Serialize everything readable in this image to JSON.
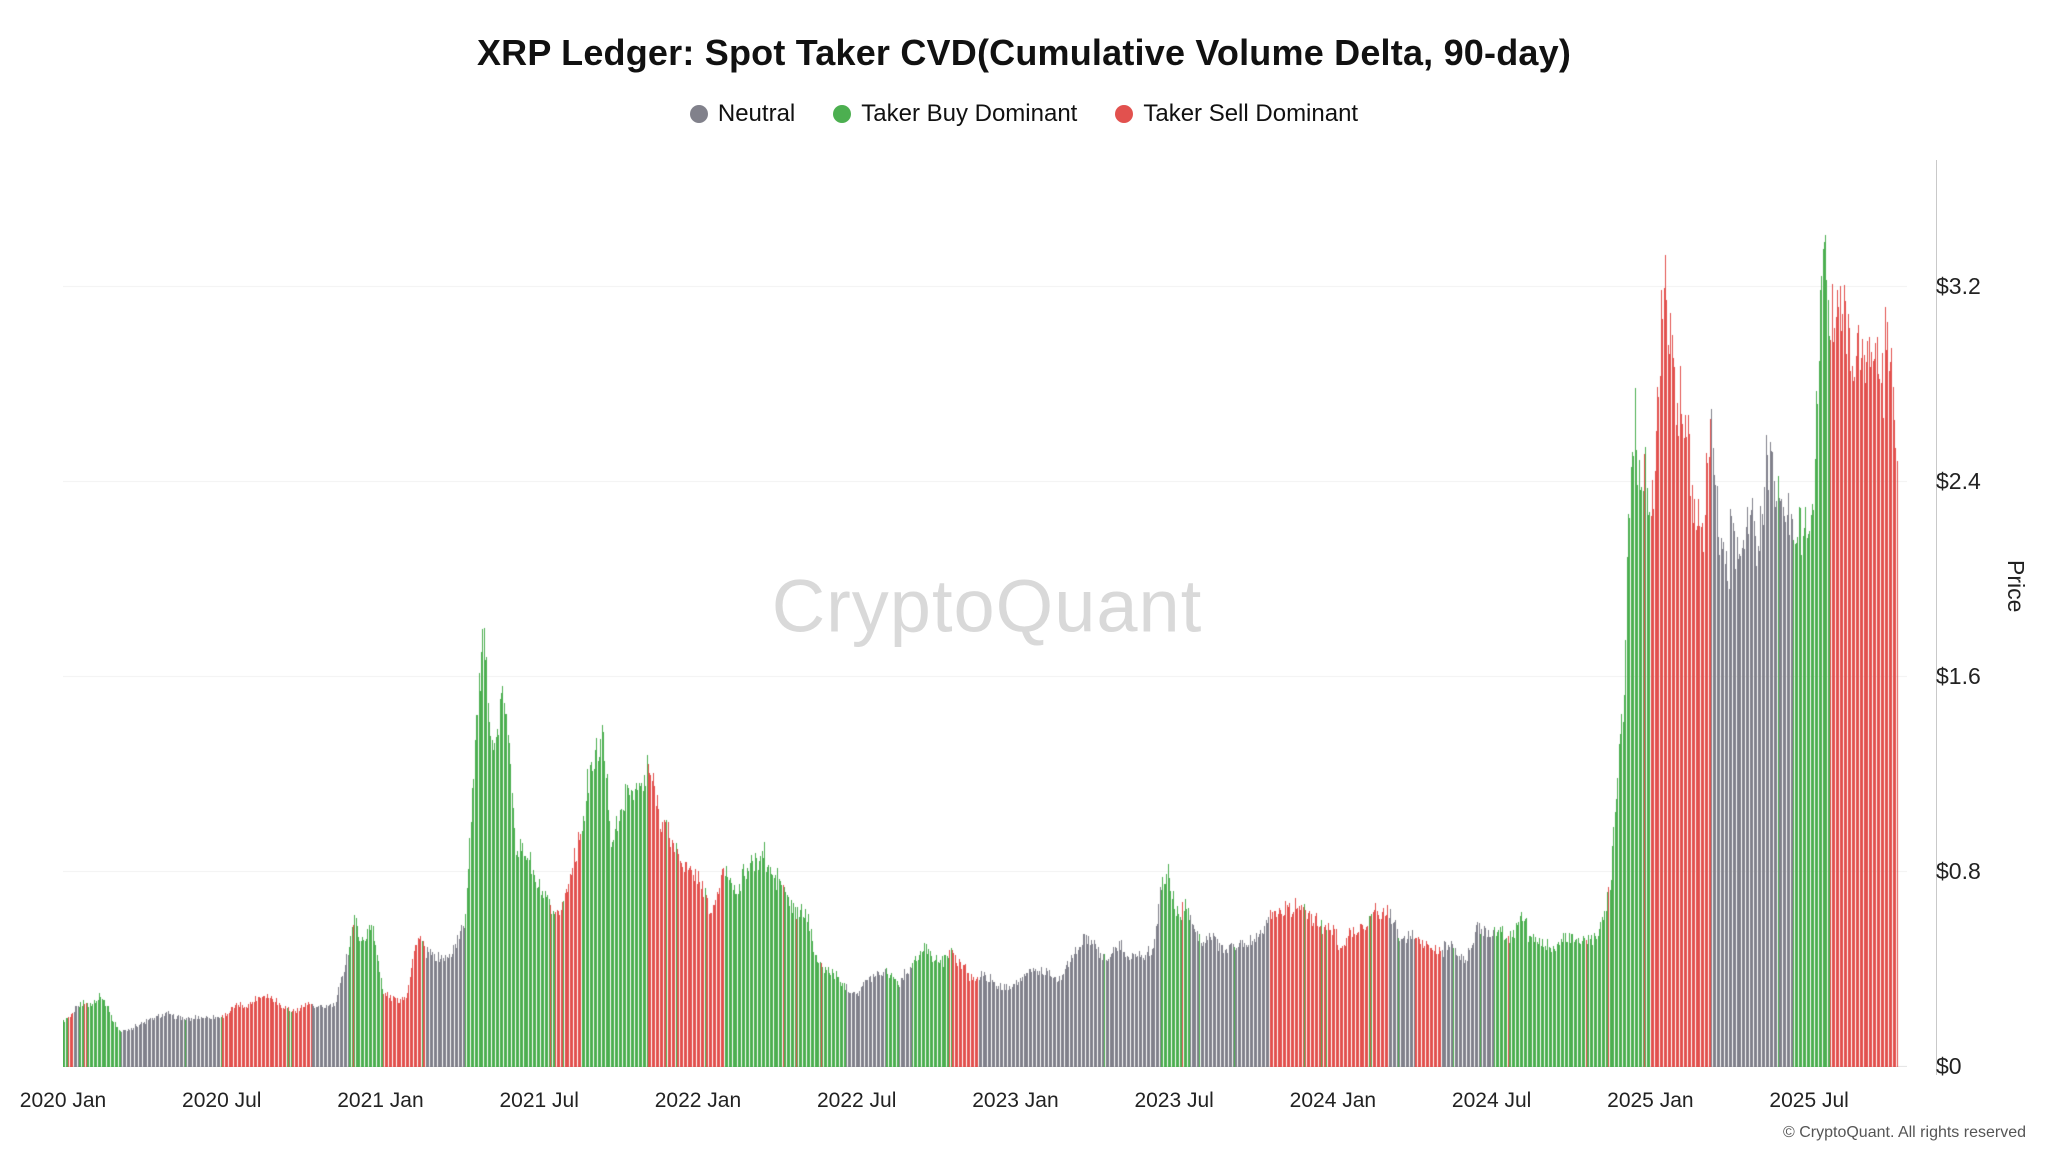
{
  "title": "XRP Ledger: Spot Taker CVD(Cumulative Volume Delta, 90-day)",
  "watermark": "CryptoQuant",
  "footer": "© CryptoQuant. All rights reserved",
  "legend": [
    {
      "key": "n",
      "label": "Neutral",
      "color": "#81818b"
    },
    {
      "key": "b",
      "label": "Taker Buy Dominant",
      "color": "#4caf50"
    },
    {
      "key": "s",
      "label": "Taker Sell Dominant",
      "color": "#e2514e"
    }
  ],
  "chart_data": {
    "type": "bar",
    "title": "XRP Ledger: Spot Taker CVD(Cumulative Volume Delta, 90-day)",
    "xlabel": "",
    "ylabel": "Price",
    "ylim": [
      0,
      3.72
    ],
    "grid": true,
    "legend_position": "top",
    "y_ticks": [
      "$0",
      "$0.8",
      "$1.6",
      "$2.4",
      "$3.2"
    ],
    "y_tick_values": [
      0,
      0.8,
      1.6,
      2.4,
      3.2
    ],
    "x_ticks": [
      "2020 Jan",
      "2020 Jul",
      "2021 Jan",
      "2021 Jul",
      "2022 Jan",
      "2022 Jul",
      "2023 Jan",
      "2023 Jul",
      "2024 Jan",
      "2024 Jul",
      "2025 Jan",
      "2025 Jul"
    ],
    "x_tick_months": [
      0,
      6,
      12,
      18,
      24,
      30,
      36,
      42,
      48,
      54,
      60,
      66
    ],
    "x_range_months": [
      0,
      69.7
    ],
    "bar_color_classes": {
      "n": "Neutral",
      "b": "Taker Buy Dominant",
      "s": "Taker Sell Dominant",
      "m": "Mixed stripes"
    },
    "series_keypoints_format": [
      "months_since_2020_jan",
      "price_usd",
      "cvd_class"
    ],
    "series_keypoints": [
      [
        0.0,
        0.19,
        "m"
      ],
      [
        0.9,
        0.26,
        "b"
      ],
      [
        1.4,
        0.29,
        "b"
      ],
      [
        2.2,
        0.15,
        "n"
      ],
      [
        3.0,
        0.18,
        "n"
      ],
      [
        4.0,
        0.21,
        "n"
      ],
      [
        5.0,
        0.2,
        "n"
      ],
      [
        6.0,
        0.2,
        "s"
      ],
      [
        6.6,
        0.24,
        "s"
      ],
      [
        7.6,
        0.29,
        "s"
      ],
      [
        8.6,
        0.24,
        "s"
      ],
      [
        9.4,
        0.25,
        "n"
      ],
      [
        10.3,
        0.26,
        "n"
      ],
      [
        10.8,
        0.5,
        "b"
      ],
      [
        11.0,
        0.62,
        "b"
      ],
      [
        11.3,
        0.52,
        "b"
      ],
      [
        11.7,
        0.6,
        "b"
      ],
      [
        12.1,
        0.3,
        "s"
      ],
      [
        12.5,
        0.27,
        "s"
      ],
      [
        13.0,
        0.31,
        "s"
      ],
      [
        13.4,
        0.55,
        "s"
      ],
      [
        13.7,
        0.45,
        "n"
      ],
      [
        14.6,
        0.44,
        "n"
      ],
      [
        15.2,
        0.6,
        "b"
      ],
      [
        15.6,
        1.4,
        "b"
      ],
      [
        15.9,
        1.78,
        "b"
      ],
      [
        16.3,
        1.3,
        "b"
      ],
      [
        16.6,
        1.55,
        "b"
      ],
      [
        17.1,
        0.95,
        "b"
      ],
      [
        17.6,
        0.9,
        "b"
      ],
      [
        18.1,
        0.68,
        "b"
      ],
      [
        18.6,
        0.6,
        "s"
      ],
      [
        19.1,
        0.72,
        "s"
      ],
      [
        19.6,
        1.05,
        "b"
      ],
      [
        20.1,
        1.22,
        "b"
      ],
      [
        20.4,
        1.33,
        "b"
      ],
      [
        20.7,
        0.98,
        "b"
      ],
      [
        21.1,
        1.08,
        "b"
      ],
      [
        21.6,
        1.15,
        "b"
      ],
      [
        22.1,
        1.18,
        "s"
      ],
      [
        22.6,
        1.0,
        "s"
      ],
      [
        23.1,
        0.92,
        "s"
      ],
      [
        23.6,
        0.82,
        "s"
      ],
      [
        24.1,
        0.76,
        "s"
      ],
      [
        24.5,
        0.62,
        "s"
      ],
      [
        25.0,
        0.8,
        "b"
      ],
      [
        25.6,
        0.74,
        "b"
      ],
      [
        26.1,
        0.8,
        "b"
      ],
      [
        26.6,
        0.86,
        "b"
      ],
      [
        27.1,
        0.76,
        "b"
      ],
      [
        27.6,
        0.64,
        "b"
      ],
      [
        28.1,
        0.6,
        "b"
      ],
      [
        28.6,
        0.42,
        "b"
      ],
      [
        29.1,
        0.4,
        "b"
      ],
      [
        29.6,
        0.34,
        "n"
      ],
      [
        30.1,
        0.32,
        "n"
      ],
      [
        30.6,
        0.36,
        "n"
      ],
      [
        31.1,
        0.38,
        "b"
      ],
      [
        31.6,
        0.34,
        "n"
      ],
      [
        32.1,
        0.43,
        "b"
      ],
      [
        32.6,
        0.49,
        "b"
      ],
      [
        33.1,
        0.46,
        "b"
      ],
      [
        33.6,
        0.45,
        "s"
      ],
      [
        34.1,
        0.4,
        "s"
      ],
      [
        34.6,
        0.38,
        "n"
      ],
      [
        35.1,
        0.36,
        "n"
      ],
      [
        35.6,
        0.34,
        "n"
      ],
      [
        36.1,
        0.37,
        "n"
      ],
      [
        36.6,
        0.4,
        "n"
      ],
      [
        37.1,
        0.38,
        "n"
      ],
      [
        37.6,
        0.37,
        "n"
      ],
      [
        38.1,
        0.44,
        "n"
      ],
      [
        38.6,
        0.52,
        "n"
      ],
      [
        39.1,
        0.46,
        "n"
      ],
      [
        39.6,
        0.45,
        "n"
      ],
      [
        40.1,
        0.48,
        "n"
      ],
      [
        40.6,
        0.47,
        "n"
      ],
      [
        41.2,
        0.48,
        "n"
      ],
      [
        41.5,
        0.72,
        "b"
      ],
      [
        41.8,
        0.8,
        "b"
      ],
      [
        42.1,
        0.68,
        "b"
      ],
      [
        42.6,
        0.6,
        "n"
      ],
      [
        43.1,
        0.52,
        "n"
      ],
      [
        43.6,
        0.5,
        "n"
      ],
      [
        44.1,
        0.51,
        "n"
      ],
      [
        44.6,
        0.53,
        "n"
      ],
      [
        45.1,
        0.56,
        "n"
      ],
      [
        45.6,
        0.62,
        "s"
      ],
      [
        46.1,
        0.61,
        "s"
      ],
      [
        46.6,
        0.68,
        "s"
      ],
      [
        47.1,
        0.62,
        "s"
      ],
      [
        47.6,
        0.56,
        "s"
      ],
      [
        48.1,
        0.53,
        "s"
      ],
      [
        48.6,
        0.55,
        "s"
      ],
      [
        49.1,
        0.56,
        "s"
      ],
      [
        49.6,
        0.63,
        "s"
      ],
      [
        50.1,
        0.6,
        "n"
      ],
      [
        50.6,
        0.52,
        "n"
      ],
      [
        51.1,
        0.52,
        "s"
      ],
      [
        51.6,
        0.5,
        "s"
      ],
      [
        52.1,
        0.48,
        "n"
      ],
      [
        52.6,
        0.47,
        "n"
      ],
      [
        53.1,
        0.44,
        "n"
      ],
      [
        53.6,
        0.58,
        "n"
      ],
      [
        54.1,
        0.57,
        "b"
      ],
      [
        54.6,
        0.56,
        "b"
      ],
      [
        55.1,
        0.58,
        "b"
      ],
      [
        55.6,
        0.53,
        "b"
      ],
      [
        56.1,
        0.52,
        "b"
      ],
      [
        56.6,
        0.54,
        "b"
      ],
      [
        57.1,
        0.52,
        "b"
      ],
      [
        57.6,
        0.55,
        "b"
      ],
      [
        58.1,
        0.56,
        "b"
      ],
      [
        58.5,
        0.75,
        "b"
      ],
      [
        58.8,
        1.25,
        "b"
      ],
      [
        59.0,
        1.5,
        "b"
      ],
      [
        59.2,
        2.35,
        "b"
      ],
      [
        59.4,
        2.6,
        "b"
      ],
      [
        59.6,
        2.25,
        "b"
      ],
      [
        59.8,
        2.45,
        "b"
      ],
      [
        60.0,
        2.15,
        "s"
      ],
      [
        60.2,
        2.45,
        "s"
      ],
      [
        60.5,
        3.15,
        "s"
      ],
      [
        60.8,
        2.9,
        "s"
      ],
      [
        61.0,
        2.5,
        "s"
      ],
      [
        61.3,
        2.85,
        "s"
      ],
      [
        61.6,
        2.45,
        "s"
      ],
      [
        62.0,
        2.2,
        "s"
      ],
      [
        62.3,
        2.5,
        "n"
      ],
      [
        62.7,
        2.15,
        "n"
      ],
      [
        63.1,
        2.1,
        "n"
      ],
      [
        63.4,
        1.95,
        "n"
      ],
      [
        63.7,
        2.15,
        "n"
      ],
      [
        64.1,
        2.2,
        "n"
      ],
      [
        64.4,
        2.42,
        "n"
      ],
      [
        64.7,
        2.3,
        "n"
      ],
      [
        65.1,
        2.2,
        "n"
      ],
      [
        65.4,
        2.12,
        "b"
      ],
      [
        65.7,
        2.2,
        "b"
      ],
      [
        66.1,
        2.28,
        "b"
      ],
      [
        66.35,
        2.95,
        "b"
      ],
      [
        66.55,
        3.5,
        "b"
      ],
      [
        66.8,
        3.1,
        "s"
      ],
      [
        67.1,
        3.15,
        "s"
      ],
      [
        67.4,
        2.95,
        "s"
      ],
      [
        67.7,
        2.85,
        "s"
      ],
      [
        68.1,
        2.95,
        "s"
      ],
      [
        68.4,
        3.05,
        "s"
      ],
      [
        68.7,
        2.9,
        "s"
      ],
      [
        69.0,
        2.85,
        "s"
      ],
      [
        69.35,
        2.4,
        "s"
      ]
    ]
  }
}
